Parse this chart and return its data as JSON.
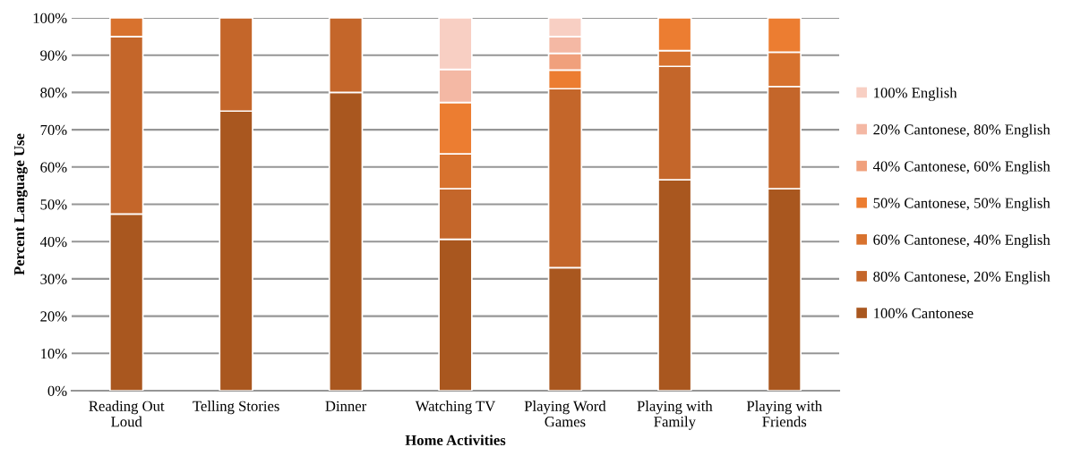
{
  "chart_data": {
    "type": "bar",
    "stacked": true,
    "xlabel": "Home Activities",
    "ylabel": "Percent Language Use",
    "categories": [
      "Reading Out\nLoud",
      "Telling Stories",
      "Dinner",
      "Watching TV",
      "Playing Word\nGames",
      "Playing with\nFamily",
      "Playing with\nFriends"
    ],
    "series": [
      {
        "name": "100% Cantonese",
        "color": "#a9571f",
        "values": [
          47.4,
          75,
          80,
          40.6,
          33,
          56.6,
          54.2
        ]
      },
      {
        "name": "80% Cantonese, 20% English",
        "color": "#c4662a",
        "values": [
          47.6,
          25,
          20,
          13.6,
          48,
          30.4,
          27.4
        ]
      },
      {
        "name": "60% Cantonese, 40% English",
        "color": "#d8722e",
        "values": [
          5,
          null,
          null,
          9.3,
          null,
          4.2,
          9.2
        ]
      },
      {
        "name": "50% Cantonese, 50% English",
        "color": "#ec7d31",
        "values": [
          null,
          null,
          null,
          13.8,
          5,
          8.8,
          9.2
        ]
      },
      {
        "name": "40% Cantonese, 60% English",
        "color": "#f0a07c",
        "values": [
          null,
          null,
          null,
          null,
          4.5,
          null,
          null
        ]
      },
      {
        "name": "20% Cantonese, 80% English",
        "color": "#f4b8a4",
        "values": [
          null,
          null,
          null,
          8.9,
          4.5,
          null,
          null
        ]
      },
      {
        "name": "100% English",
        "color": "#f8cfc3",
        "values": [
          null,
          null,
          null,
          13.8,
          5,
          null,
          null
        ]
      }
    ],
    "ylim": [
      0,
      100
    ],
    "yticks": [
      {
        "value": 0,
        "label": "0%"
      },
      {
        "value": 10,
        "label": "10%"
      },
      {
        "value": 20,
        "label": "20%"
      },
      {
        "value": 30,
        "label": "30%"
      },
      {
        "value": 40,
        "label": "40%"
      },
      {
        "value": 50,
        "label": "50%"
      },
      {
        "value": 60,
        "label": "60%"
      },
      {
        "value": 70,
        "label": "70%"
      },
      {
        "value": 80,
        "label": "80%"
      },
      {
        "value": 90,
        "label": "90%"
      },
      {
        "value": 100,
        "label": "100%"
      }
    ],
    "grid": "y",
    "legend": "right"
  }
}
